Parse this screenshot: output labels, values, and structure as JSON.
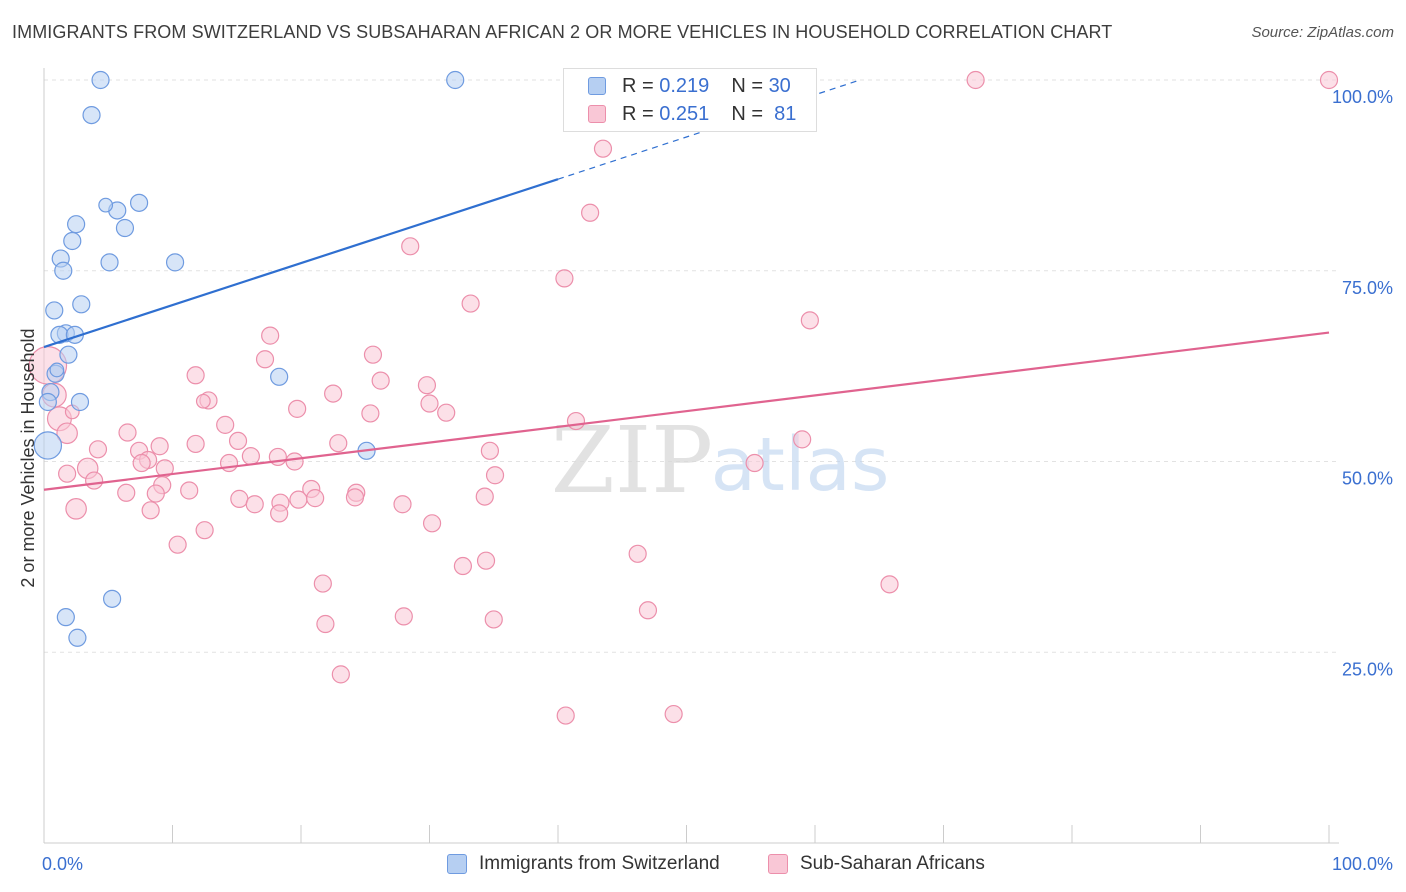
{
  "header": {
    "title": "IMMIGRANTS FROM SWITZERLAND VS SUBSAHARAN AFRICAN 2 OR MORE VEHICLES IN HOUSEHOLD CORRELATION CHART",
    "source": "Source: ZipAtlas.com"
  },
  "legend": {
    "series1": {
      "r_label": "R =",
      "r_value": "0.219",
      "n_label": "N =",
      "n_value": "30"
    },
    "series2": {
      "r_label": "R =",
      "r_value": "0.251",
      "n_label": "N =",
      "n_value": "81"
    }
  },
  "bottom_legend": {
    "series1": "Immigrants from Switzerland",
    "series2": "Sub-Saharan Africans"
  },
  "watermark": {
    "zip": "ZIP",
    "atlas": "atlas"
  },
  "colors": {
    "blue_fill": "#b6cff2",
    "blue_stroke": "#6f9be0",
    "blue_line": "#2f6fd0",
    "pink_fill": "#f9c7d6",
    "pink_stroke": "#ec8fab",
    "pink_line": "#e0638f",
    "grid": "#e2e2e2",
    "tick_label": "#3a6fd0"
  },
  "chart_data": {
    "type": "scatter",
    "title": "IMMIGRANTS FROM SWITZERLAND VS SUBSAHARAN AFRICAN 2 OR MORE VEHICLES IN HOUSEHOLD CORRELATION CHART",
    "xlabel": "",
    "ylabel": "2 or more Vehicles in Household",
    "xlim": [
      0,
      100
    ],
    "ylim": [
      0,
      102
    ],
    "x_tick_labels": [
      "0.0%",
      "100.0%"
    ],
    "y_ticks": [
      25,
      50,
      75,
      100
    ],
    "y_tick_labels": [
      "25.0%",
      "50.0%",
      "75.0%",
      "100.0%"
    ],
    "grid": true,
    "series": [
      {
        "name": "Immigrants from Switzerland",
        "color": "blue",
        "points": [
          [
            4.4,
            100
          ],
          [
            32,
            100
          ],
          [
            3.7,
            95.4
          ],
          [
            7.4,
            83.9
          ],
          [
            5.7,
            82.9
          ],
          [
            2.5,
            81.1
          ],
          [
            6.3,
            80.6
          ],
          [
            2.2,
            78.9
          ],
          [
            1.3,
            76.6
          ],
          [
            5.1,
            76.1
          ],
          [
            10.2,
            76.1
          ],
          [
            1.5,
            75.0
          ],
          [
            2.9,
            70.6
          ],
          [
            0.8,
            69.8
          ],
          [
            1.7,
            66.8
          ],
          [
            1.2,
            66.6
          ],
          [
            2.4,
            66.6
          ],
          [
            1.9,
            64.0
          ],
          [
            0.9,
            61.5
          ],
          [
            18.3,
            61.1
          ],
          [
            0.5,
            59.1
          ],
          [
            2.8,
            57.8
          ],
          [
            0.3,
            57.8
          ],
          [
            0.3,
            52.1
          ],
          [
            25.1,
            51.4
          ],
          [
            5.3,
            32.0
          ],
          [
            1.7,
            29.6
          ],
          [
            2.6,
            26.9
          ],
          [
            4.8,
            83.6
          ],
          [
            1.0,
            62.0
          ]
        ],
        "sizes": [
          10,
          10,
          10,
          10,
          10,
          10,
          10,
          10,
          10,
          10,
          10,
          10,
          10,
          10,
          10,
          10,
          10,
          10,
          10,
          10,
          10,
          10,
          10,
          16,
          10,
          10,
          10,
          10,
          8,
          8
        ],
        "trend": {
          "x0": 0,
          "y0": 65.0,
          "x1": 40,
          "y1": 87.0,
          "dashed_to_x": 63.5,
          "dashed_to_y": 100
        }
      },
      {
        "name": "Sub-Saharan Africans",
        "color": "pink",
        "points": [
          [
            72.5,
            100
          ],
          [
            100,
            100
          ],
          [
            43.5,
            91.0
          ],
          [
            42.5,
            82.6
          ],
          [
            28.5,
            78.2
          ],
          [
            40.5,
            74.0
          ],
          [
            33.2,
            70.7
          ],
          [
            59.6,
            68.5
          ],
          [
            17.6,
            66.5
          ],
          [
            25.6,
            64.0
          ],
          [
            17.2,
            63.4
          ],
          [
            11.8,
            61.3
          ],
          [
            26.2,
            60.6
          ],
          [
            29.8,
            60.0
          ],
          [
            22.5,
            58.9
          ],
          [
            12.8,
            58.0
          ],
          [
            30.0,
            57.6
          ],
          [
            19.7,
            56.9
          ],
          [
            31.3,
            56.4
          ],
          [
            25.4,
            56.3
          ],
          [
            41.4,
            55.3
          ],
          [
            0.8,
            58.7
          ],
          [
            1.2,
            55.6
          ],
          [
            14.1,
            54.8
          ],
          [
            1.8,
            53.7
          ],
          [
            6.5,
            53.8
          ],
          [
            15.1,
            52.7
          ],
          [
            59.0,
            52.9
          ],
          [
            11.8,
            52.3
          ],
          [
            22.9,
            52.4
          ],
          [
            9.0,
            52.0
          ],
          [
            4.2,
            51.6
          ],
          [
            7.4,
            51.4
          ],
          [
            34.7,
            51.4
          ],
          [
            16.1,
            50.7
          ],
          [
            18.2,
            50.6
          ],
          [
            8.1,
            50.2
          ],
          [
            14.4,
            49.8
          ],
          [
            19.5,
            50.0
          ],
          [
            7.6,
            49.8
          ],
          [
            55.3,
            49.8
          ],
          [
            3.4,
            49.1
          ],
          [
            9.4,
            49.1
          ],
          [
            1.8,
            48.4
          ],
          [
            35.1,
            48.2
          ],
          [
            3.9,
            47.5
          ],
          [
            9.2,
            46.9
          ],
          [
            20.8,
            46.4
          ],
          [
            11.3,
            46.2
          ],
          [
            6.4,
            45.9
          ],
          [
            8.7,
            45.8
          ],
          [
            24.3,
            45.9
          ],
          [
            15.2,
            45.1
          ],
          [
            19.8,
            45.0
          ],
          [
            18.4,
            44.6
          ],
          [
            24.2,
            45.3
          ],
          [
            34.3,
            45.4
          ],
          [
            21.1,
            45.2
          ],
          [
            16.4,
            44.4
          ],
          [
            27.9,
            44.4
          ],
          [
            2.5,
            43.8
          ],
          [
            8.3,
            43.6
          ],
          [
            18.3,
            43.2
          ],
          [
            30.2,
            41.9
          ],
          [
            12.5,
            41.0
          ],
          [
            10.4,
            39.1
          ],
          [
            46.2,
            37.9
          ],
          [
            34.4,
            37.0
          ],
          [
            32.6,
            36.3
          ],
          [
            21.7,
            34.0
          ],
          [
            65.8,
            33.9
          ],
          [
            47.0,
            30.5
          ],
          [
            28.0,
            29.7
          ],
          [
            35.0,
            29.3
          ],
          [
            21.9,
            28.7
          ],
          [
            23.1,
            22.1
          ],
          [
            40.6,
            16.7
          ],
          [
            49.0,
            16.9
          ],
          [
            0.3,
            62.6
          ],
          [
            2.2,
            56.5
          ],
          [
            12.4,
            57.9
          ]
        ],
        "sizes": [
          10,
          10,
          10,
          10,
          10,
          10,
          10,
          10,
          10,
          10,
          10,
          10,
          10,
          10,
          10,
          10,
          10,
          10,
          10,
          10,
          10,
          14,
          14,
          10,
          12,
          10,
          10,
          10,
          10,
          10,
          10,
          10,
          10,
          10,
          10,
          10,
          10,
          10,
          10,
          10,
          10,
          12,
          10,
          10,
          10,
          10,
          10,
          10,
          10,
          10,
          10,
          10,
          10,
          10,
          10,
          10,
          10,
          10,
          10,
          10,
          12,
          10,
          10,
          10,
          10,
          10,
          10,
          10,
          10,
          10,
          10,
          10,
          10,
          10,
          10,
          10,
          10,
          10,
          22,
          8,
          8
        ],
        "trend": {
          "x0": 0,
          "y0": 46.3,
          "x1": 100,
          "y1": 66.9
        }
      }
    ]
  }
}
